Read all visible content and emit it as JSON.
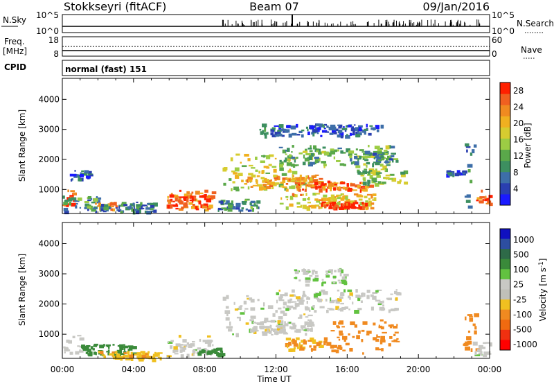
{
  "header": {
    "title": "Stokkseyri (fitACF)",
    "beam": "Beam 07",
    "date": "09/Jan/2016"
  },
  "panels": {
    "nsky_label": "N.Sky",
    "nsky_ticks": [
      "10^5",
      "10^0"
    ],
    "nsearch_label": "N.Search",
    "nsearch_ticks": [
      "10^5",
      "10^0"
    ],
    "freq_label": "Freq.",
    "freq_unit": "[MHz]",
    "freq_ticks": [
      "18",
      "8"
    ],
    "nave_label": "Nave",
    "nave_ticks": [
      "60",
      "0"
    ],
    "cpid_label": "CPID",
    "cpid_value": "normal (fast) 151"
  },
  "colors": {
    "power": [
      "#1a1aff",
      "#2a3fb0",
      "#3d6ea8",
      "#3d8f60",
      "#5aa84a",
      "#9ccc44",
      "#d6cc30",
      "#f0b020",
      "#f08a20",
      "#f06020",
      "#ff2000"
    ],
    "velocity": [
      "#1010c0",
      "#2d4ea0",
      "#2e6a48",
      "#3a8a3a",
      "#62c240",
      "#c8c8c4",
      "#c0c0b8",
      "#f0c020",
      "#f08a20",
      "#f06a10",
      "#f03010",
      "#ff0000"
    ]
  },
  "chart_data": [
    {
      "type": "heatmap",
      "name": "power",
      "xlabel": "Time UT",
      "ylabel": "Slant Range [km]",
      "x_ticks": [
        "00:00",
        "04:00",
        "08:00",
        "12:00",
        "16:00",
        "20:00",
        "00:00"
      ],
      "xlim_hours": [
        0,
        24
      ],
      "y_ticks": [
        "1000",
        "2000",
        "3000",
        "4000"
      ],
      "ylim": [
        200,
        4700
      ],
      "colorbar_label": "Power [dB]",
      "colorbar_ticks": [
        "4",
        "8",
        "12",
        "16",
        "20",
        "24",
        "28"
      ],
      "colorbar_range": [
        0,
        30
      ],
      "regions": [
        {
          "t0": 0.0,
          "t1": 0.6,
          "r0": 500,
          "r1": 1000,
          "level": 26
        },
        {
          "t0": 0.0,
          "t1": 2.0,
          "r0": 300,
          "r1": 800,
          "level": 10
        },
        {
          "t0": 0.3,
          "t1": 1.6,
          "r0": 1300,
          "r1": 1650,
          "level": 6
        },
        {
          "t0": 1.8,
          "t1": 3.0,
          "r0": 350,
          "r1": 600,
          "level": 22
        },
        {
          "t0": 2.0,
          "t1": 5.2,
          "r0": 280,
          "r1": 600,
          "level": 8
        },
        {
          "t0": 5.8,
          "t1": 8.5,
          "r0": 350,
          "r1": 1000,
          "level": 24
        },
        {
          "t0": 6.0,
          "t1": 8.0,
          "r0": 450,
          "r1": 850,
          "level": 28
        },
        {
          "t0": 8.5,
          "t1": 11.0,
          "r0": 300,
          "r1": 700,
          "level": 9
        },
        {
          "t0": 9.0,
          "t1": 13.8,
          "r0": 1000,
          "r1": 2200,
          "level": 16
        },
        {
          "t0": 10.2,
          "t1": 14.5,
          "r0": 1100,
          "r1": 1500,
          "level": 22
        },
        {
          "t0": 12.0,
          "t1": 18.5,
          "r0": 1800,
          "r1": 2500,
          "level": 12
        },
        {
          "t0": 13.0,
          "t1": 17.2,
          "r0": 1000,
          "r1": 1300,
          "level": 24
        },
        {
          "t0": 12.2,
          "t1": 17.5,
          "r0": 400,
          "r1": 900,
          "level": 20
        },
        {
          "t0": 14.5,
          "t1": 17.0,
          "r0": 400,
          "r1": 600,
          "level": 29
        },
        {
          "t0": 16.0,
          "t1": 18.8,
          "r0": 1900,
          "r1": 2300,
          "level": 10
        },
        {
          "t0": 16.5,
          "t1": 19.2,
          "r0": 1200,
          "r1": 1700,
          "level": 14
        },
        {
          "t0": 11.0,
          "t1": 18.0,
          "r0": 2800,
          "r1": 3200,
          "level": 6
        },
        {
          "t0": 21.5,
          "t1": 22.5,
          "r0": 1500,
          "r1": 1650,
          "level": 5
        },
        {
          "t0": 22.5,
          "t1": 23.2,
          "r0": 300,
          "r1": 2600,
          "level": 8
        },
        {
          "t0": 23.2,
          "t1": 24.0,
          "r0": 500,
          "r1": 1000,
          "level": 26
        }
      ]
    },
    {
      "type": "heatmap",
      "name": "velocity",
      "xlabel": "Time UT",
      "ylabel": "Slant Range [km]",
      "x_ticks": [
        "00:00",
        "04:00",
        "08:00",
        "12:00",
        "16:00",
        "20:00",
        "00:00"
      ],
      "xlim_hours": [
        0,
        24
      ],
      "y_ticks": [
        "1000",
        "2000",
        "3000",
        "4000"
      ],
      "ylim": [
        200,
        4700
      ],
      "colorbar_label": "Velocity [m s^-1]",
      "colorbar_ticks": [
        "1000",
        "500",
        "100",
        "25",
        "-25",
        "-100",
        "-500",
        "-1000"
      ],
      "regions": [
        {
          "t0": 0.0,
          "t1": 1.0,
          "r0": 400,
          "r1": 1000,
          "vel": 0
        },
        {
          "t0": 1.0,
          "t1": 4.0,
          "r0": 350,
          "r1": 700,
          "vel": 150
        },
        {
          "t0": 2.0,
          "t1": 5.5,
          "r0": 200,
          "r1": 450,
          "vel": -80
        },
        {
          "t0": 5.8,
          "t1": 8.5,
          "r0": 300,
          "r1": 1000,
          "vel": 0
        },
        {
          "t0": 7.5,
          "t1": 9.0,
          "r0": 300,
          "r1": 600,
          "vel": 200
        },
        {
          "t0": 9.0,
          "t1": 14.0,
          "r0": 1000,
          "r1": 2300,
          "vel": 0
        },
        {
          "t0": 12.0,
          "t1": 18.8,
          "r0": 1800,
          "r1": 2500,
          "vel": 0
        },
        {
          "t0": 12.5,
          "t1": 15.0,
          "r0": 500,
          "r1": 900,
          "vel": -100
        },
        {
          "t0": 15.0,
          "t1": 18.8,
          "r0": 400,
          "r1": 1500,
          "vel": -300
        },
        {
          "t0": 10.5,
          "t1": 14.0,
          "r0": 1100,
          "r1": 1500,
          "vel": 0
        },
        {
          "t0": 13.0,
          "t1": 16.0,
          "r0": 2600,
          "r1": 3200,
          "vel": 20
        },
        {
          "t0": 22.5,
          "t1": 23.5,
          "r0": 500,
          "r1": 1700,
          "vel": -300
        },
        {
          "t0": 23.0,
          "t1": 24.0,
          "r0": 300,
          "r1": 800,
          "vel": 0
        }
      ]
    }
  ]
}
